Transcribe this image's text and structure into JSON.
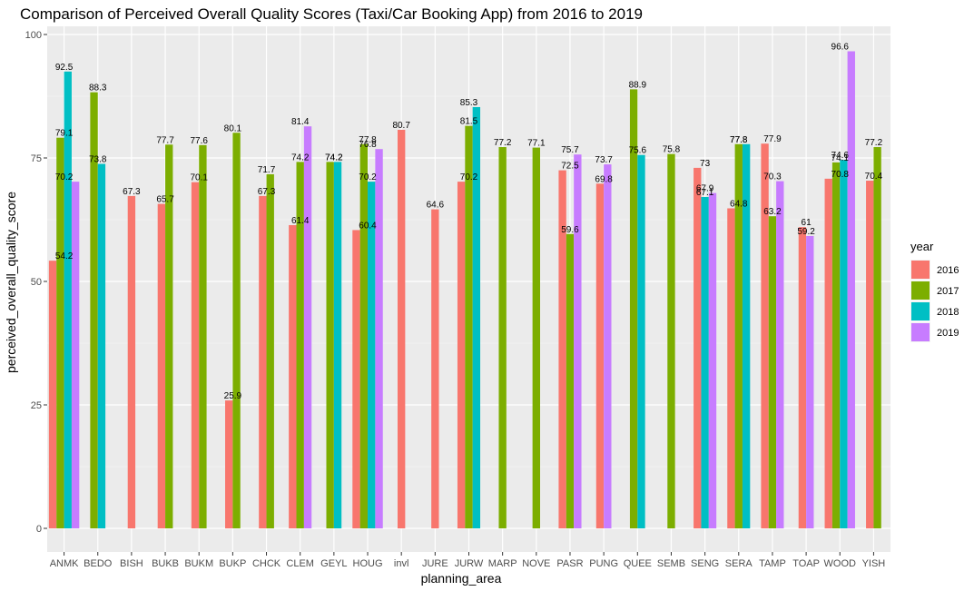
{
  "chart_data": {
    "type": "bar",
    "title": "Comparison of Perceived Overall Quality Scores (Taxi/Car Booking App) from 2016 to 2019",
    "xlabel": "planning_area",
    "ylabel": "perceived_overall_quality_score",
    "ylim": [
      0,
      100
    ],
    "yticks": [
      0,
      25,
      50,
      75,
      100
    ],
    "grid": true,
    "legend": {
      "title": "year",
      "position": "right"
    },
    "categories": [
      "ANMK",
      "BEDO",
      "BISH",
      "BUKB",
      "BUKM",
      "BUKP",
      "CHCK",
      "CLEM",
      "GEYL",
      "HOUG",
      "invl",
      "JURE",
      "JURW",
      "MARP",
      "NOVE",
      "PASR",
      "PUNG",
      "QUEE",
      "SEMB",
      "SENG",
      "SERA",
      "TAMP",
      "TOAP",
      "WOOD",
      "YISH"
    ],
    "series": [
      {
        "name": "2016",
        "color": "#F8766D",
        "values": [
          54.2,
          null,
          67.3,
          65.7,
          70.1,
          25.9,
          67.3,
          61.4,
          null,
          60.4,
          80.7,
          64.6,
          70.2,
          null,
          null,
          72.5,
          69.8,
          null,
          null,
          73.0,
          64.8,
          77.9,
          61.0,
          70.8,
          70.4
        ]
      },
      {
        "name": "2017",
        "color": "#7CAE00",
        "values": [
          79.1,
          88.3,
          null,
          77.7,
          77.6,
          80.1,
          71.7,
          74.2,
          74.2,
          77.8,
          null,
          null,
          81.5,
          77.2,
          77.1,
          59.6,
          null,
          88.9,
          75.8,
          null,
          77.8,
          63.2,
          null,
          74.1,
          77.2
        ]
      },
      {
        "name": "2018",
        "color": "#00BFC4",
        "values": [
          92.5,
          73.8,
          null,
          null,
          null,
          null,
          null,
          null,
          74.2,
          70.2,
          null,
          null,
          85.3,
          null,
          null,
          null,
          null,
          75.6,
          null,
          67.1,
          77.8,
          null,
          null,
          74.6,
          null
        ]
      },
      {
        "name": "2019",
        "color": "#C77CFF",
        "values": [
          70.2,
          null,
          null,
          null,
          null,
          null,
          null,
          81.4,
          null,
          76.8,
          null,
          null,
          null,
          null,
          null,
          75.7,
          73.7,
          null,
          null,
          67.9,
          null,
          70.3,
          59.2,
          96.6,
          null
        ]
      }
    ],
    "data_labels": {
      "ANMK": [
        "92.5",
        "79.1",
        "70.2",
        "54.2"
      ],
      "BEDO": [
        "88.3",
        "73.8"
      ],
      "BISH": [
        "67.3"
      ],
      "BUKB": [
        "77.7",
        "65.7"
      ],
      "BUKM": [
        "77.6",
        "70.1"
      ],
      "BUKP": [
        "80.1",
        "25.9"
      ],
      "CHCK": [
        "71.7",
        "67.3"
      ],
      "CLEM": [
        "81.4",
        "74.2",
        "61.4"
      ],
      "GEYL": [
        "74.2",
        "74.2"
      ],
      "HOUG": [
        "77.8",
        "76.8",
        "70.2",
        "60.4"
      ],
      "invl": [
        "80.7"
      ],
      "JURE": [
        "64.6"
      ],
      "JURW": [
        "85.3",
        "81.5",
        "70.2"
      ],
      "MARP": [
        "77.2"
      ],
      "NOVE": [
        "77.1"
      ],
      "PASR": [
        "75.7",
        "72.5",
        "59.6"
      ],
      "PUNG": [
        "73.7",
        "69.8"
      ],
      "QUEE": [
        "88.9",
        "75.6"
      ],
      "SEMB": [
        "75.8"
      ],
      "SENG": [
        "73",
        "67.9",
        "67.1"
      ],
      "SERA": [
        "77.8",
        "77.8",
        "64.8"
      ],
      "TAMP": [
        "77.9",
        "70.3",
        "63.2"
      ],
      "TOAP": [
        "61",
        "59.2"
      ],
      "WOOD": [
        "96.6",
        "74.6",
        "74.1",
        "70.8"
      ],
      "YISH": [
        "77.2",
        "70.4"
      ]
    }
  }
}
